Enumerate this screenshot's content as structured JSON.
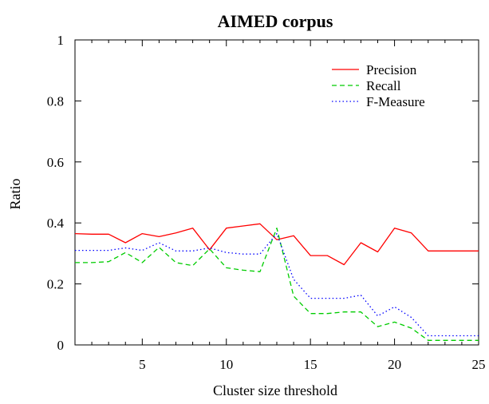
{
  "chart_data": {
    "type": "line",
    "title": "AIMED corpus",
    "xlabel": "Cluster size threshold",
    "ylabel": "Ratio",
    "xlim": [
      1,
      25
    ],
    "ylim": [
      0,
      1
    ],
    "xticks": [
      5,
      10,
      15,
      20,
      25
    ],
    "yticks": [
      0,
      0.2,
      0.4,
      0.6,
      0.8,
      1
    ],
    "ytick_labels": [
      "0",
      "0.2",
      "0.4",
      "0.6",
      "0.8",
      "1"
    ],
    "grid": false,
    "legend": "top-right",
    "x": [
      1,
      2,
      3,
      4,
      5,
      6,
      7,
      8,
      9,
      10,
      11,
      12,
      13,
      14,
      15,
      16,
      17,
      18,
      19,
      20,
      21,
      22,
      23,
      24,
      25
    ],
    "series": [
      {
        "name": "Precision",
        "color": "#ff0000",
        "dash": "solid",
        "values": [
          0.365,
          0.363,
          0.363,
          0.335,
          0.365,
          0.355,
          0.367,
          0.383,
          0.312,
          0.383,
          0.39,
          0.397,
          0.345,
          0.358,
          0.293,
          0.293,
          0.263,
          0.335,
          0.305,
          0.383,
          0.367,
          0.308,
          0.308,
          0.308,
          0.308
        ]
      },
      {
        "name": "Recall",
        "color": "#00cc00",
        "dash": "dashed",
        "values": [
          0.27,
          0.27,
          0.273,
          0.303,
          0.27,
          0.32,
          0.27,
          0.26,
          0.315,
          0.253,
          0.245,
          0.24,
          0.383,
          0.16,
          0.103,
          0.103,
          0.108,
          0.108,
          0.06,
          0.075,
          0.055,
          0.015,
          0.015,
          0.015,
          0.015
        ]
      },
      {
        "name": "F-Measure",
        "color": "#0000ff",
        "dash": "dotted",
        "values": [
          0.31,
          0.31,
          0.31,
          0.318,
          0.31,
          0.335,
          0.308,
          0.308,
          0.318,
          0.303,
          0.298,
          0.298,
          0.365,
          0.215,
          0.153,
          0.153,
          0.153,
          0.163,
          0.095,
          0.125,
          0.09,
          0.03,
          0.03,
          0.03,
          0.03
        ]
      }
    ]
  }
}
